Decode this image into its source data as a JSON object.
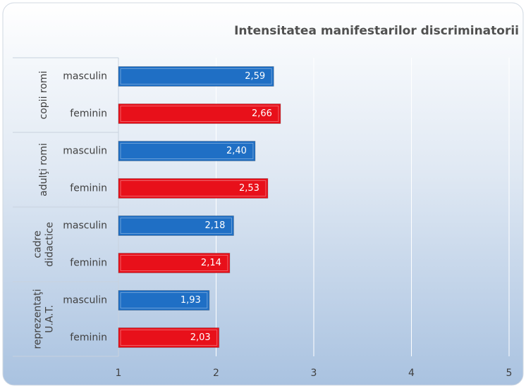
{
  "chart_data": {
    "type": "bar",
    "orientation": "horizontal",
    "title": "Intensitatea manifestarilor discriminatorii",
    "group_labels": [
      [
        "copii romi"
      ],
      [
        "adulţi romi"
      ],
      [
        "cadre",
        "didactice"
      ],
      [
        "reprezentaţi",
        "U.A.T."
      ]
    ],
    "categories": [
      "masculin",
      "feminin",
      "masculin",
      "feminin",
      "masculin",
      "feminin",
      "masculin",
      "feminin"
    ],
    "values": [
      2.59,
      2.66,
      2.4,
      2.53,
      2.18,
      2.14,
      1.93,
      2.03
    ],
    "value_labels": [
      "2,59",
      "2,66",
      "2,40",
      "2,53",
      "2,18",
      "2,14",
      "1,93",
      "2,03"
    ],
    "colors": [
      "#1f6fc5",
      "#e8101a",
      "#1f6fc5",
      "#e8101a",
      "#1f6fc5",
      "#e8101a",
      "#1f6fc5",
      "#e8101a"
    ],
    "xlim": [
      1,
      5
    ],
    "xticks": [
      1,
      2,
      3,
      4,
      5
    ],
    "grid": true
  }
}
